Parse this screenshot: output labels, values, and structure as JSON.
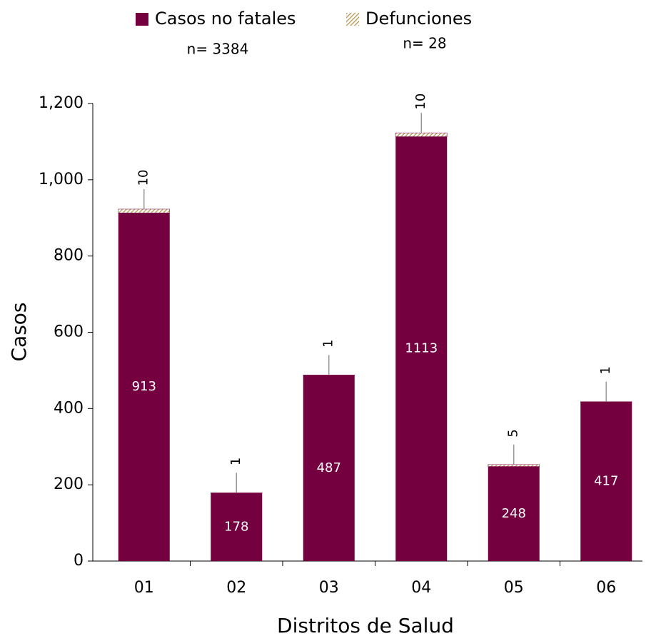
{
  "chart_data": {
    "type": "stacked_bar",
    "x_label": "Distritos de Salud",
    "y_label": "Casos",
    "categories": [
      "01",
      "02",
      "03",
      "04",
      "05",
      "06"
    ],
    "series": [
      {
        "name": "Casos no fatales",
        "subtitle": "n= 3384",
        "color": "#74003f",
        "values": [
          913,
          178,
          487,
          1113,
          248,
          417
        ]
      },
      {
        "name": "Defunciones",
        "subtitle": "n= 28",
        "color": "#b8924a",
        "values": [
          10,
          1,
          1,
          10,
          5,
          1
        ]
      }
    ],
    "ylim": [
      0,
      1200
    ],
    "yticks": [
      0,
      200,
      400,
      600,
      800,
      {
        "value": 1000,
        "label": "1,000"
      },
      {
        "value": 1200,
        "label": "1,200"
      }
    ]
  }
}
